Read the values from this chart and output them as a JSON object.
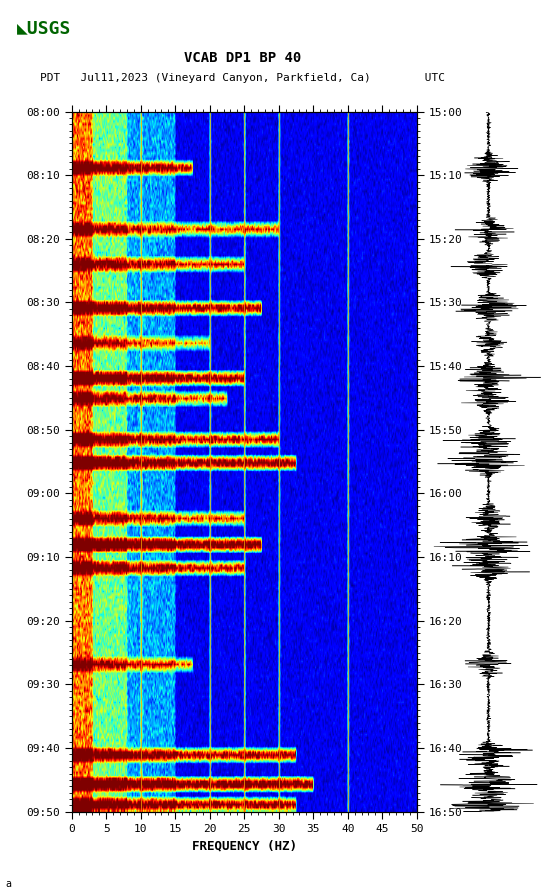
{
  "title_line1": "VCAB DP1 BP 40",
  "title_line2": "PDT   Jul11,2023 (Vineyard Canyon, Parkfield, Ca)        UTC",
  "xlabel": "FREQUENCY (HZ)",
  "freq_min": 0,
  "freq_max": 50,
  "freq_ticks": [
    0,
    5,
    10,
    15,
    20,
    25,
    30,
    35,
    40,
    45,
    50
  ],
  "time_left_labels": [
    "08:00",
    "08:10",
    "08:20",
    "08:30",
    "08:40",
    "08:50",
    "09:00",
    "09:10",
    "09:20",
    "09:30",
    "09:40",
    "09:50"
  ],
  "time_right_labels": [
    "15:00",
    "15:10",
    "15:20",
    "15:30",
    "15:40",
    "15:50",
    "16:00",
    "16:10",
    "16:20",
    "16:30",
    "16:40",
    "16:50"
  ],
  "n_time_steps": 240,
  "n_freq_steps": 500,
  "vert_lines_freq": [
    10,
    20,
    25,
    30,
    40
  ],
  "background_color": "#ffffff",
  "usgs_green": "#006400",
  "spectrogram_cmap": "jet",
  "fig_width": 5.52,
  "fig_height": 8.92,
  "dpi": 100,
  "seed": 42,
  "events": [
    {
      "t": 0.08,
      "s": 2.5,
      "fw": 0.35
    },
    {
      "t": 0.17,
      "s": 2.0,
      "fw": 0.6
    },
    {
      "t": 0.22,
      "s": 2.2,
      "fw": 0.5
    },
    {
      "t": 0.28,
      "s": 2.8,
      "fw": 0.55
    },
    {
      "t": 0.33,
      "s": 1.5,
      "fw": 0.4
    },
    {
      "t": 0.38,
      "s": 3.0,
      "fw": 0.5
    },
    {
      "t": 0.41,
      "s": 2.0,
      "fw": 0.45
    },
    {
      "t": 0.47,
      "s": 2.5,
      "fw": 0.6
    },
    {
      "t": 0.5,
      "s": 3.2,
      "fw": 0.65
    },
    {
      "t": 0.58,
      "s": 2.0,
      "fw": 0.5
    },
    {
      "t": 0.62,
      "s": 3.5,
      "fw": 0.55
    },
    {
      "t": 0.65,
      "s": 2.5,
      "fw": 0.5
    },
    {
      "t": 0.79,
      "s": 1.8,
      "fw": 0.35
    },
    {
      "t": 0.92,
      "s": 2.8,
      "fw": 0.65
    },
    {
      "t": 0.96,
      "s": 3.5,
      "fw": 0.7
    },
    {
      "t": 0.99,
      "s": 3.0,
      "fw": 0.65
    }
  ]
}
